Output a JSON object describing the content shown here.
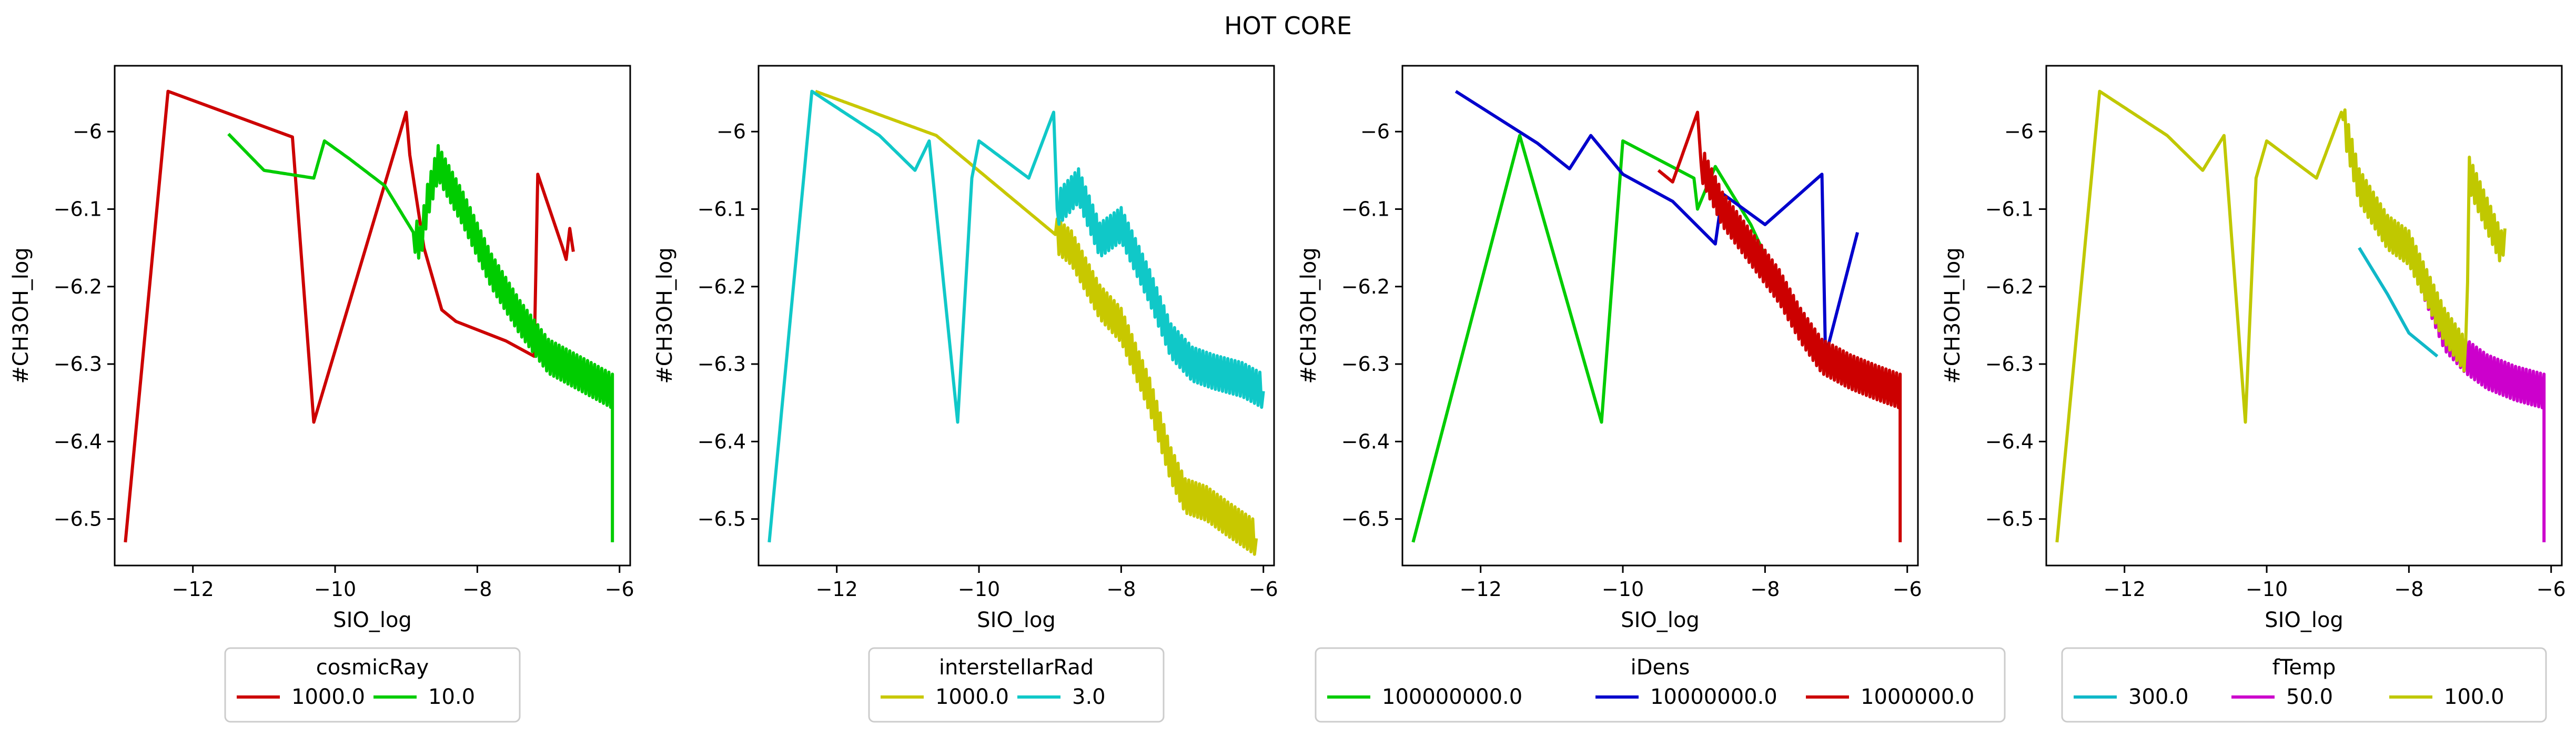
{
  "title": "HOT CORE",
  "chart_data": [
    {
      "type": "line",
      "xlabel": "SIO_log",
      "ylabel": "#CH3OH_log",
      "xlim": [
        -13.1,
        -5.85
      ],
      "ylim": [
        -6.56,
        -5.915
      ],
      "xticks": [
        -12,
        -10,
        -8,
        -6
      ],
      "yticks": [
        -6.0,
        -6.1,
        -6.2,
        -6.3,
        -6.4,
        -6.5
      ],
      "legend": {
        "title": "cosmicRay",
        "columns": 2,
        "placement": "bottom-center"
      },
      "series": [
        {
          "name": "1000.0",
          "color": "#cc0000",
          "dense": false,
          "points": [
            [
              -12.95,
              -6.53
            ],
            [
              -12.35,
              -5.948
            ],
            [
              -10.6,
              -6.007
            ],
            [
              -10.3,
              -6.375
            ],
            [
              -9.0,
              -5.975
            ],
            [
              -8.95,
              -6.03
            ],
            [
              -8.75,
              -6.15
            ],
            [
              -8.5,
              -6.23
            ],
            [
              -8.3,
              -6.245
            ],
            [
              -7.6,
              -6.27
            ],
            [
              -7.2,
              -6.29
            ],
            [
              -7.15,
              -6.055
            ],
            [
              -6.8,
              -6.15
            ],
            [
              -6.75,
              -6.165
            ],
            [
              -6.7,
              -6.125
            ],
            [
              -6.65,
              -6.155
            ]
          ]
        },
        {
          "name": "10.0",
          "color": "#00cc00",
          "dense": true,
          "points": [
            [
              -11.5,
              -6.003
            ],
            [
              -11.0,
              -6.05
            ],
            [
              -10.3,
              -6.06
            ],
            [
              -10.15,
              -6.012
            ],
            [
              -9.8,
              -6.035
            ],
            [
              -9.3,
              -6.07
            ],
            [
              -8.8,
              -6.145
            ],
            [
              -8.7,
              -6.09
            ],
            [
              -8.55,
              -6.04
            ],
            [
              -8.2,
              -6.1
            ],
            [
              -7.8,
              -6.18
            ],
            [
              -7.4,
              -6.24
            ],
            [
              -7.0,
              -6.29
            ],
            [
              -6.6,
              -6.31
            ],
            [
              -6.1,
              -6.335
            ],
            [
              -6.1,
              -6.53
            ]
          ]
        }
      ]
    },
    {
      "type": "line",
      "xlabel": "SIO_log",
      "ylabel": "#CH3OH_log",
      "xlim": [
        -13.1,
        -5.85
      ],
      "ylim": [
        -6.56,
        -5.915
      ],
      "xticks": [
        -12,
        -10,
        -8,
        -6
      ],
      "yticks": [
        -6.0,
        -6.1,
        -6.2,
        -6.3,
        -6.4,
        -6.5
      ],
      "legend": {
        "title": "interstellarRad",
        "columns": 2,
        "placement": "bottom-center"
      },
      "series": [
        {
          "name": "1000.0",
          "color": "#c8c800",
          "dense": true,
          "points": [
            [
              -12.3,
              -5.948
            ],
            [
              -10.6,
              -6.005
            ],
            [
              -8.7,
              -6.15
            ],
            [
              -8.3,
              -6.22
            ],
            [
              -8.0,
              -6.25
            ],
            [
              -7.6,
              -6.34
            ],
            [
              -7.3,
              -6.43
            ],
            [
              -7.1,
              -6.47
            ],
            [
              -6.8,
              -6.48
            ],
            [
              -6.5,
              -6.5
            ],
            [
              -6.1,
              -6.525
            ]
          ]
        },
        {
          "name": "3.0",
          "color": "#10c8c8",
          "dense": true,
          "points": [
            [
              -12.95,
              -6.53
            ],
            [
              -12.35,
              -5.948
            ],
            [
              -11.4,
              -6.005
            ],
            [
              -10.9,
              -6.05
            ],
            [
              -10.7,
              -6.012
            ],
            [
              -10.3,
              -6.375
            ],
            [
              -10.1,
              -6.06
            ],
            [
              -10.0,
              -6.012
            ],
            [
              -9.3,
              -6.06
            ],
            [
              -8.95,
              -5.975
            ],
            [
              -8.9,
              -6.1
            ],
            [
              -8.6,
              -6.07
            ],
            [
              -8.3,
              -6.14
            ],
            [
              -8.0,
              -6.12
            ],
            [
              -7.6,
              -6.2
            ],
            [
              -7.3,
              -6.27
            ],
            [
              -7.0,
              -6.3
            ],
            [
              -6.7,
              -6.31
            ],
            [
              -6.3,
              -6.32
            ],
            [
              -6.0,
              -6.335
            ]
          ]
        }
      ]
    },
    {
      "type": "line",
      "xlabel": "SIO_log",
      "ylabel": "#CH3OH_log",
      "xlim": [
        -13.1,
        -5.85
      ],
      "ylim": [
        -6.56,
        -5.915
      ],
      "xticks": [
        -12,
        -10,
        -8,
        -6
      ],
      "yticks": [
        -6.0,
        -6.1,
        -6.2,
        -6.3,
        -6.4,
        -6.5
      ],
      "legend": {
        "title": "iDens",
        "columns": 3,
        "placement": "bottom-center"
      },
      "series": [
        {
          "name": "100000000.0",
          "color": "#00cc00",
          "dense": false,
          "points": [
            [
              -12.95,
              -6.53
            ],
            [
              -11.45,
              -6.005
            ],
            [
              -10.3,
              -6.375
            ],
            [
              -10.0,
              -6.012
            ],
            [
              -9.0,
              -6.06
            ],
            [
              -8.95,
              -6.1
            ],
            [
              -8.7,
              -6.045
            ],
            [
              -8.4,
              -6.09
            ],
            [
              -8.2,
              -6.12
            ],
            [
              -7.9,
              -6.18
            ],
            [
              -7.5,
              -6.24
            ],
            [
              -7.2,
              -6.28
            ]
          ]
        },
        {
          "name": "10000000.0",
          "color": "#0000cc",
          "dense": false,
          "points": [
            [
              -12.35,
              -5.948
            ],
            [
              -11.2,
              -6.015
            ],
            [
              -10.75,
              -6.048
            ],
            [
              -10.45,
              -6.005
            ],
            [
              -10.0,
              -6.055
            ],
            [
              -9.3,
              -6.09
            ],
            [
              -8.7,
              -6.145
            ],
            [
              -8.6,
              -6.08
            ],
            [
              -8.0,
              -6.12
            ],
            [
              -7.2,
              -6.055
            ],
            [
              -7.15,
              -6.29
            ],
            [
              -6.7,
              -6.13
            ]
          ]
        },
        {
          "name": "1000000.0",
          "color": "#cc0000",
          "dense": true,
          "points": [
            [
              -9.5,
              -6.05
            ],
            [
              -9.3,
              -6.065
            ],
            [
              -8.95,
              -5.975
            ],
            [
              -8.9,
              -6.04
            ],
            [
              -8.6,
              -6.1
            ],
            [
              -8.2,
              -6.15
            ],
            [
              -7.8,
              -6.2
            ],
            [
              -7.5,
              -6.25
            ],
            [
              -7.2,
              -6.29
            ],
            [
              -6.8,
              -6.31
            ],
            [
              -6.4,
              -6.325
            ],
            [
              -6.1,
              -6.335
            ],
            [
              -6.1,
              -6.53
            ]
          ]
        }
      ]
    },
    {
      "type": "line",
      "xlabel": "SIO_log",
      "ylabel": "#CH3OH_log",
      "xlim": [
        -13.1,
        -5.85
      ],
      "ylim": [
        -6.56,
        -5.915
      ],
      "xticks": [
        -12,
        -10,
        -8,
        -6
      ],
      "yticks": [
        -6.0,
        -6.1,
        -6.2,
        -6.3,
        -6.4,
        -6.5
      ],
      "legend": {
        "title": "fTemp",
        "columns": 3,
        "placement": "bottom-center"
      },
      "series": [
        {
          "name": "300.0",
          "color": "#10b8c8",
          "dense": false,
          "points": [
            [
              -8.7,
              -6.15
            ],
            [
              -8.3,
              -6.21
            ],
            [
              -8.0,
              -6.26
            ],
            [
              -7.6,
              -6.29
            ]
          ]
        },
        {
          "name": "50.0",
          "color": "#cc00cc",
          "dense": true,
          "points": [
            [
              -7.8,
              -6.19
            ],
            [
              -7.5,
              -6.26
            ],
            [
              -7.2,
              -6.29
            ],
            [
              -6.9,
              -6.31
            ],
            [
              -6.5,
              -6.325
            ],
            [
              -6.1,
              -6.335
            ],
            [
              -6.1,
              -6.53
            ]
          ]
        },
        {
          "name": "100.0",
          "color": "#c0c800",
          "dense": true,
          "points": [
            [
              -12.95,
              -6.53
            ],
            [
              -12.35,
              -5.948
            ],
            [
              -11.4,
              -6.005
            ],
            [
              -10.9,
              -6.05
            ],
            [
              -10.6,
              -6.005
            ],
            [
              -10.3,
              -6.375
            ],
            [
              -10.15,
              -6.06
            ],
            [
              -10.0,
              -6.012
            ],
            [
              -9.3,
              -6.06
            ],
            [
              -8.95,
              -5.975
            ],
            [
              -8.7,
              -6.07
            ],
            [
              -8.3,
              -6.13
            ],
            [
              -8.0,
              -6.15
            ],
            [
              -7.5,
              -6.25
            ],
            [
              -7.2,
              -6.29
            ],
            [
              -7.15,
              -6.055
            ],
            [
              -6.7,
              -6.15
            ],
            [
              -6.65,
              -6.125
            ]
          ]
        }
      ]
    }
  ]
}
